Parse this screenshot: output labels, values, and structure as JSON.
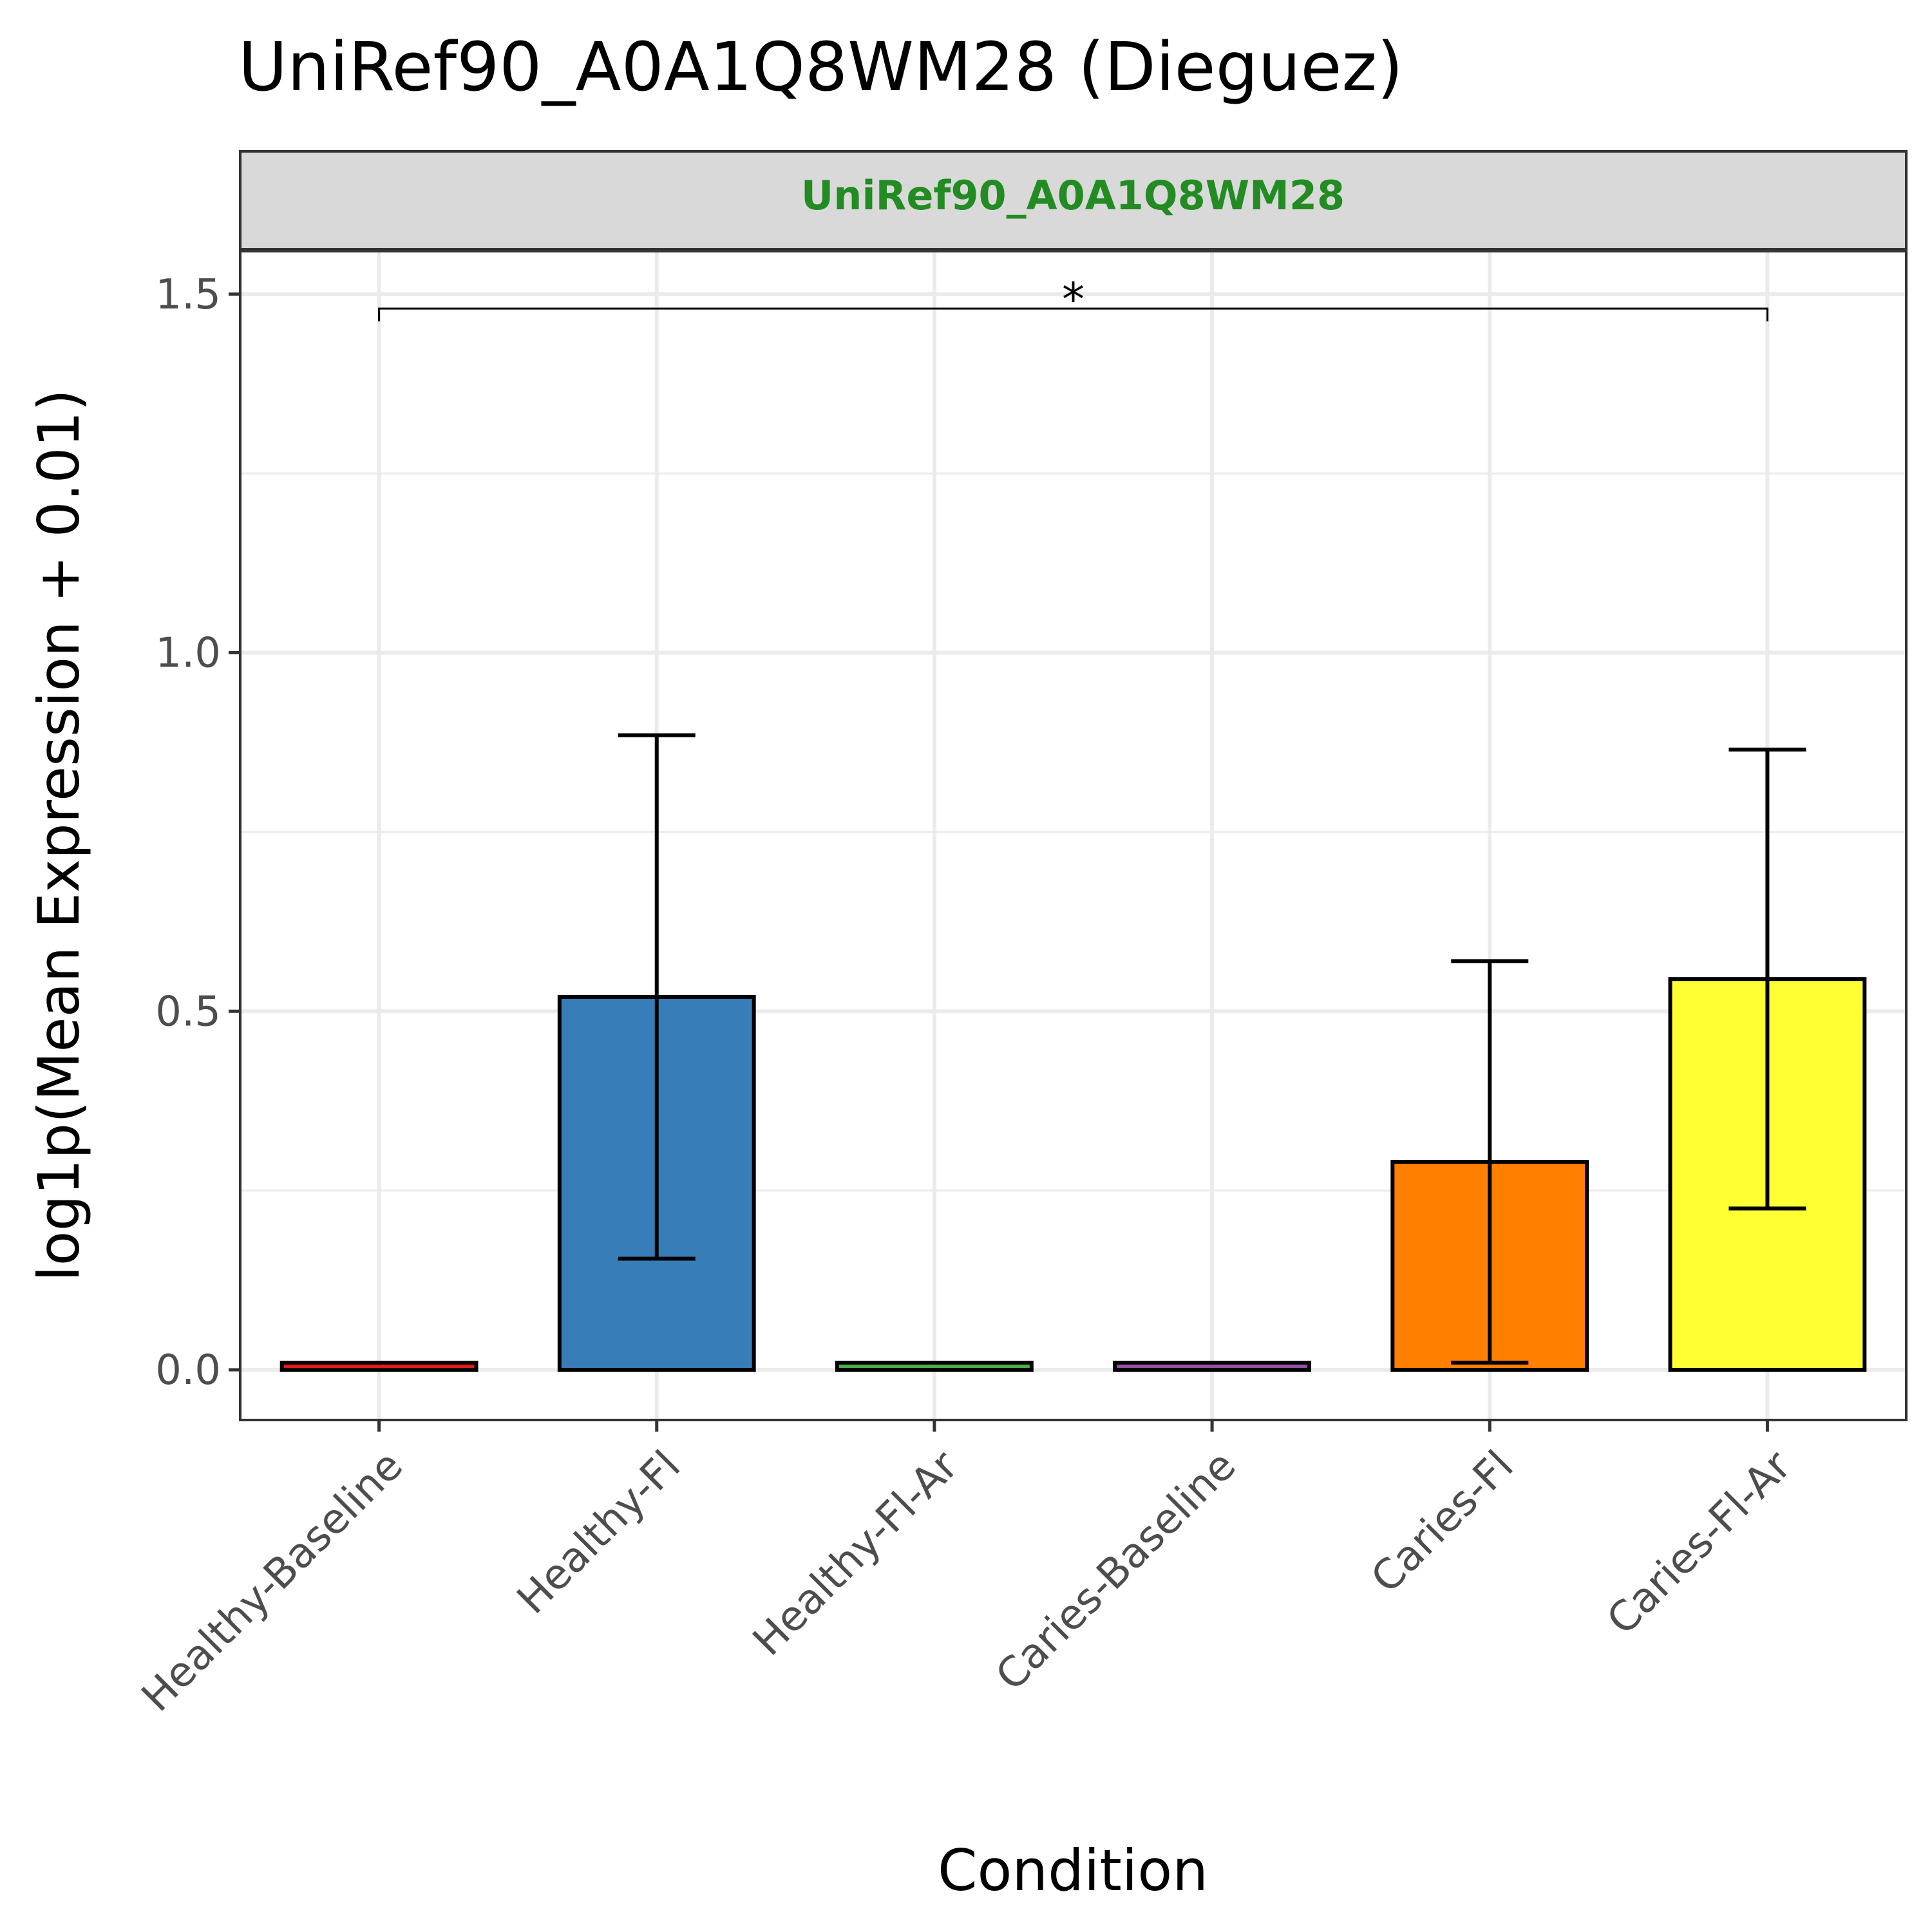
{
  "chart_data": {
    "type": "bar",
    "title": "UniRef90_A0A1Q8WM28 (Dieguez)",
    "facet_label": "UniRef90_A0A1Q8WM28",
    "xlabel": "Condition",
    "ylabel": "log1p(Mean Expression + 0.01)",
    "ylim": [
      -0.07,
      1.56
    ],
    "y_ticks": [
      0.0,
      0.5,
      1.0,
      1.5
    ],
    "y_tick_labels": [
      "0.0",
      "0.5",
      "1.0",
      "1.5"
    ],
    "grid": true,
    "categories": [
      "Healthy-Baseline",
      "Healthy-Fl",
      "Healthy-Fl-Ar",
      "Caries-Baseline",
      "Caries-Fl",
      "Caries-Fl-Ar"
    ],
    "values": [
      0.01,
      0.52,
      0.01,
      0.01,
      0.29,
      0.545
    ],
    "error_low": [
      null,
      0.155,
      null,
      null,
      0.01,
      0.225
    ],
    "error_high": [
      null,
      0.885,
      null,
      null,
      0.57,
      0.865
    ],
    "bar_colors": [
      "#E41A1C",
      "#377EB8",
      "#4DAF4A",
      "#984EA3",
      "#FF7F00",
      "#FFFF33"
    ],
    "significance": [
      {
        "from": "Healthy-Baseline",
        "to": "Caries-Fl-Ar",
        "label": "*",
        "y": 1.48
      }
    ]
  }
}
